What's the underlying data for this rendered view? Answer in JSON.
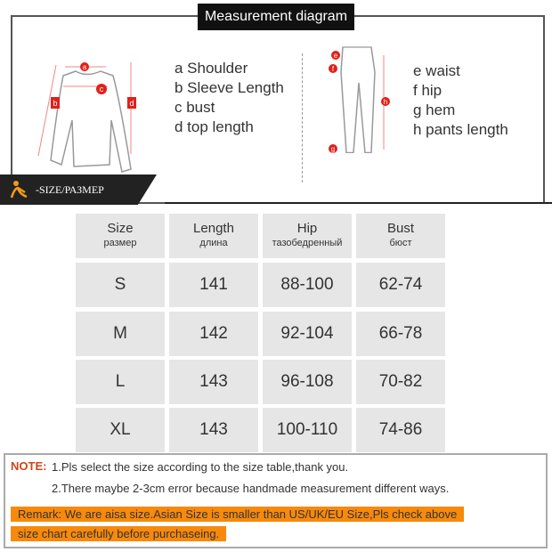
{
  "diagram": {
    "title": "Measurement diagram",
    "top_legend": [
      "a Shoulder",
      "b Sleeve Length",
      "c bust",
      "d top length"
    ],
    "pants_legend": [
      "e waist",
      "f  hip",
      "g hem",
      "h pants length"
    ],
    "markers": {
      "top": [
        "a",
        "b",
        "c",
        "d"
      ],
      "pants": [
        "e",
        "f",
        "g",
        "h"
      ]
    },
    "marker_color": "#e0201a"
  },
  "size_banner": "-SIZE/РАЗМЕР",
  "table": {
    "headers": [
      [
        "Size",
        "размер"
      ],
      [
        "Length",
        "длина"
      ],
      [
        "Hip",
        "тазобедренный"
      ],
      [
        "Bust",
        "бюст"
      ]
    ],
    "rows": [
      [
        "S",
        "141",
        "88-100",
        "62-74"
      ],
      [
        "M",
        "142",
        "92-104",
        "66-78"
      ],
      [
        "L",
        "143",
        "96-108",
        "70-82"
      ],
      [
        "XL",
        "143",
        "100-110",
        "74-86"
      ]
    ]
  },
  "note": {
    "label": "NOTE:",
    "line1": "1.Pls select the size according to the size table,thank you.",
    "line2": "2.There maybe 2-3cm error because handmade measurement different ways.",
    "remark1": "Remark: We are aisa size.Asian Size is smaller than US/UK/EU Size,Pls check above",
    "remark2": "size chart carefully before purchaseing."
  },
  "colors": {
    "note_label": "#d0441a",
    "remark_bg": "#f7890b"
  }
}
